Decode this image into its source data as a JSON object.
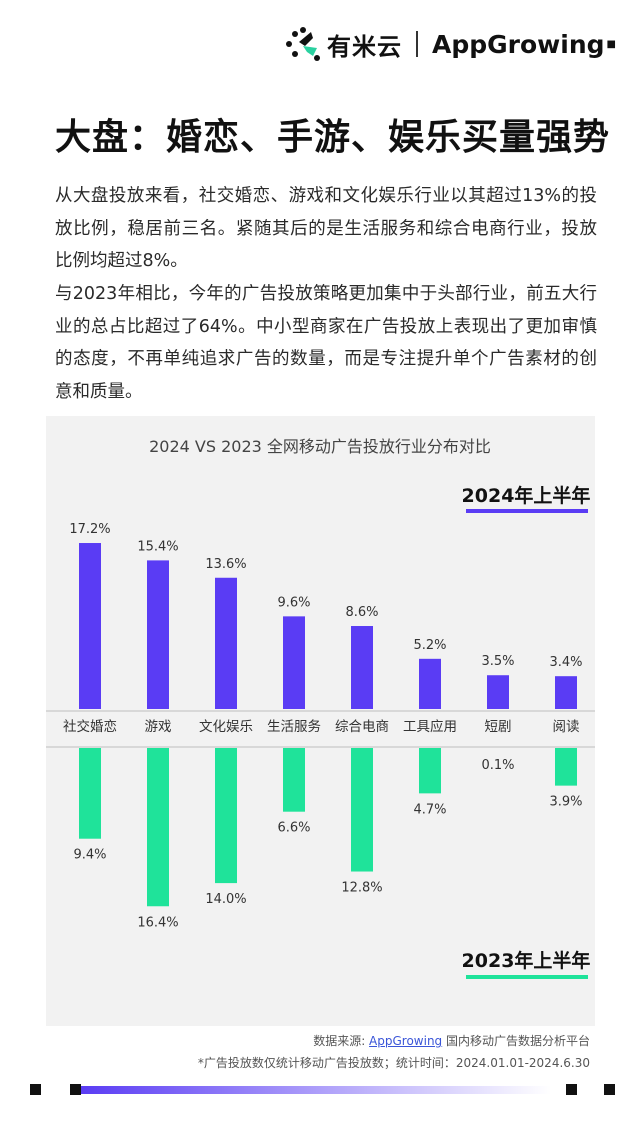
{
  "header": {
    "brand_cn": "有米云",
    "brand_en_a": "App",
    "brand_en_b": "Growing"
  },
  "title": "大盘：婚恋、手游、娱乐买量强势",
  "paragraphs": [
    "从大盘投放来看，社交婚恋、游戏和文化娱乐行业以其超过13%的投放比例，稳居前三名。紧随其后的是生活服务和综合电商行业，投放比例均超过8%。",
    "与2023年相比，今年的广告投放策略更加集中于头部行业，前五大行业的总占比超过了64%。中小型商家在广告投放上表现出了更加审慎的态度，不再单纯追求广告的数量，而是专注提升单个广告素材的创意和质量。"
  ],
  "chart_data": {
    "type": "bar",
    "title": "2024 VS 2023 全网移动广告投放行业分布对比",
    "categories": [
      "社交婚恋",
      "游戏",
      "文化娱乐",
      "生活服务",
      "综合电商",
      "工具应用",
      "短剧",
      "阅读"
    ],
    "series": [
      {
        "name": "2024年上半年",
        "values": [
          17.2,
          15.4,
          13.6,
          9.6,
          8.6,
          5.2,
          3.5,
          3.4
        ],
        "color": "#5a3cf4",
        "direction": "up"
      },
      {
        "name": "2023年上半年",
        "values": [
          9.4,
          16.4,
          14.0,
          6.6,
          12.8,
          4.7,
          0.1,
          3.9
        ],
        "color": "#1fe39a",
        "direction": "down"
      }
    ],
    "value_suffix": "%",
    "legend": "series names placed right, top for 2024 and bottom for 2023"
  },
  "footer": {
    "source_prefix": "数据来源: ",
    "source_link": "AppGrowing",
    "source_suffix": " 国内移动广告数据分析平台",
    "note": "*广告投放数仅统计移动广告投放数；统计时间：2024.01.01-2024.6.30"
  },
  "colors": {
    "purple": "#5a3cf4",
    "green": "#1fe39a",
    "panel": "#f2f2f2"
  }
}
